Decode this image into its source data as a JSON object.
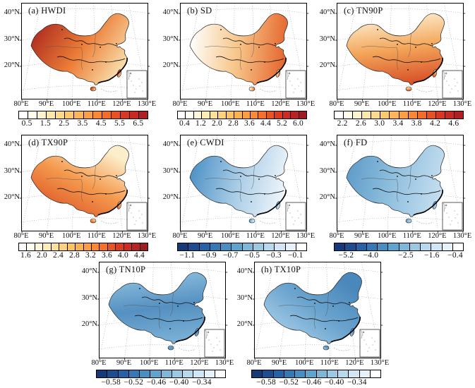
{
  "figure": {
    "background": "#ffffff",
    "frame_color": "#000000",
    "axis": {
      "lat_labels": [
        "40°N",
        "30°N",
        "20°N"
      ],
      "lon_labels": [
        "80°E",
        "90°E",
        "100°E",
        "110°E",
        "120°E",
        "130°E"
      ]
    },
    "panels": [
      {
        "id": "a",
        "title": "(a) HWDI",
        "map_gradient": {
          "angle": 115,
          "stops": [
            "#b23122",
            "#ec7c36",
            "#f8dca8"
          ]
        },
        "colorbar": {
          "ticks": [
            "0.5",
            "1.5",
            "2.5",
            "3.5",
            "4.5",
            "5.5",
            "6.5"
          ],
          "colors": [
            "#ffffff",
            "#fffce9",
            "#fdf3cf",
            "#fbe8ad",
            "#fcda8d",
            "#fcc96f",
            "#fcb559",
            "#fb9f45",
            "#f98735",
            "#f56c2a",
            "#e95023",
            "#da3722",
            "#c92823",
            "#b01f22"
          ]
        }
      },
      {
        "id": "b",
        "title": "(b) SD",
        "map_gradient": {
          "angle": 95,
          "stops": [
            "#fefefb",
            "#f7c487",
            "#e4632c"
          ]
        },
        "colorbar": {
          "ticks": [
            "0.4",
            "1.2",
            "2.0",
            "2.8",
            "3.6",
            "4.4",
            "5.2",
            "6.0"
          ],
          "colors": [
            "#ffffff",
            "#fffdf1",
            "#fdf6d8",
            "#fcecb6",
            "#fbe098",
            "#fcd27d",
            "#fcc365",
            "#fcb150",
            "#fb9d42",
            "#f98935",
            "#f6702b",
            "#ea5423",
            "#dc3b22",
            "#cc2c23",
            "#b92124",
            "#a01b1f"
          ]
        }
      },
      {
        "id": "c",
        "title": "(c) TN90P",
        "map_gradient": {
          "angle": 170,
          "stops": [
            "#fdf0d3",
            "#f3a659",
            "#d85129"
          ]
        },
        "colorbar": {
          "ticks": [
            "2.2",
            "2.6",
            "3.0",
            "3.4",
            "3.8",
            "4.2",
            "4.6"
          ],
          "colors": [
            "#ffffff",
            "#fffce9",
            "#fdf3cf",
            "#fbe8ad",
            "#fcda8d",
            "#fcc96f",
            "#fcb559",
            "#fb9f45",
            "#f98735",
            "#f56c2a",
            "#e95023",
            "#da3722",
            "#c92823",
            "#b01f22"
          ]
        }
      },
      {
        "id": "d",
        "title": "(d) TX90P",
        "map_gradient": {
          "angle": 215,
          "stops": [
            "#fdeecb",
            "#f49a4e",
            "#df5a28"
          ]
        },
        "colorbar": {
          "ticks": [
            "1.6",
            "2.0",
            "2.4",
            "2.8",
            "3.2",
            "3.6",
            "4.0",
            "4.4"
          ],
          "colors": [
            "#ffffff",
            "#fffdf1",
            "#fdf6d8",
            "#fcecb6",
            "#fbe098",
            "#fcd27d",
            "#fcc365",
            "#fcb150",
            "#fb9d42",
            "#f98935",
            "#f6702b",
            "#ea5423",
            "#dc3b22",
            "#cc2c23",
            "#b92124",
            "#a01b1f"
          ]
        }
      },
      {
        "id": "e",
        "title": "(e) CWDI",
        "map_gradient": {
          "angle": 100,
          "stops": [
            "#4f93c6",
            "#aacde7",
            "#f0f6fb"
          ]
        },
        "colorbar": {
          "ticks": [
            "−1.1",
            "−0.9",
            "−0.7",
            "−0.5",
            "−0.3",
            "−0.1"
          ],
          "colors": [
            "#16397a",
            "#1d4d90",
            "#2662a7",
            "#3478b5",
            "#478fc2",
            "#5fa4ce",
            "#7eb7d9",
            "#9bc9e2",
            "#b8d9ec",
            "#d1e5f4",
            "#e7f1f9",
            "#ffffff"
          ]
        }
      },
      {
        "id": "f",
        "title": "(f) FD",
        "map_gradient": {
          "angle": 100,
          "stops": [
            "#609dca",
            "#92c1df",
            "#c6dff0"
          ]
        },
        "colorbar": {
          "ticks": [
            "−5.2",
            "−4.0",
            "−2.5",
            "−1.6",
            "−0.4"
          ],
          "tick_positions": [
            0.1,
            0.29,
            0.56,
            0.76,
            0.94
          ],
          "colors": [
            "#16397a",
            "#1d4d90",
            "#2662a7",
            "#3478b5",
            "#478fc2",
            "#5fa4ce",
            "#7eb7d9",
            "#9bc9e2",
            "#b8d9ec",
            "#d1e5f4",
            "#e7f1f9",
            "#ffffff"
          ]
        }
      },
      {
        "id": "g",
        "title": "(g) TN10P",
        "map_gradient": {
          "angle": 170,
          "stops": [
            "#8cbfdf",
            "#5590c1",
            "#7ab1d6"
          ]
        },
        "colorbar": {
          "ticks": [
            "−0.58",
            "−0.52",
            "−0.46",
            "−0.40",
            "−0.34"
          ],
          "tick_positions": [
            0.12,
            0.295,
            0.47,
            0.645,
            0.82
          ],
          "colors": [
            "#16397a",
            "#1d4d90",
            "#2662a7",
            "#3478b5",
            "#478fc2",
            "#5fa4ce",
            "#7eb7d9",
            "#9bc9e2",
            "#b8d9ec",
            "#d1e5f4",
            "#e7f1f9",
            "#ffffff"
          ]
        }
      },
      {
        "id": "h",
        "title": "(h) TX10P",
        "map_gradient": {
          "angle": 45,
          "stops": [
            "#a5cce7",
            "#6ba4ce",
            "#4a87ba"
          ]
        },
        "colorbar": {
          "ticks": [
            "−0.58",
            "−0.52",
            "−0.46",
            "−0.40",
            "−0.34"
          ],
          "tick_positions": [
            0.12,
            0.295,
            0.47,
            0.645,
            0.82
          ],
          "colors": [
            "#16397a",
            "#1d4d90",
            "#2662a7",
            "#3478b5",
            "#478fc2",
            "#5fa4ce",
            "#7eb7d9",
            "#9bc9e2",
            "#b8d9ec",
            "#d1e5f4",
            "#e7f1f9",
            "#ffffff"
          ]
        }
      }
    ]
  },
  "chart_data": [
    {
      "type": "heatmap",
      "subtype": "choropleth-map",
      "panel": "a",
      "title": "(a) HWDI",
      "region": "China",
      "x_ticks": [
        "80°E",
        "90°E",
        "100°E",
        "110°E",
        "120°E",
        "130°E"
      ],
      "y_ticks": [
        "40°N",
        "30°N",
        "20°N"
      ],
      "colorbar_ticks": [
        0.5,
        1.5,
        2.5,
        3.5,
        4.5,
        5.5,
        6.5
      ],
      "palette": "white-yellow-orange-darkred",
      "spatial_pattern": "high values (dark red) in northwest/Tibet edge, moderate orange over most of China, lightest in southeast coast"
    },
    {
      "type": "heatmap",
      "subtype": "choropleth-map",
      "panel": "b",
      "title": "(b) SD",
      "region": "China",
      "x_ticks": [
        "80°E",
        "90°E",
        "100°E",
        "110°E",
        "120°E",
        "130°E"
      ],
      "y_ticks": [
        "40°N",
        "30°N",
        "20°N"
      ],
      "colorbar_ticks": [
        0.4,
        1.2,
        2.0,
        2.8,
        3.6,
        4.4,
        5.2,
        6.0
      ],
      "palette": "white-yellow-orange-darkred",
      "spatial_pattern": "near-zero (white) over western Tibet, orange in east, darkest red in southwest (Yunnan)"
    },
    {
      "type": "heatmap",
      "subtype": "choropleth-map",
      "panel": "c",
      "title": "(c) TN90P",
      "region": "China",
      "x_ticks": [
        "80°E",
        "90°E",
        "100°E",
        "110°E",
        "120°E",
        "130°E"
      ],
      "y_ticks": [
        "40°N",
        "30°N",
        "20°N"
      ],
      "colorbar_ticks": [
        2.2,
        2.6,
        3.0,
        3.4,
        3.8,
        4.2,
        4.6
      ],
      "palette": "white-yellow-orange-darkred",
      "spatial_pattern": "light cream in north/northeast, orange in central-west, dark red along south coast"
    },
    {
      "type": "heatmap",
      "subtype": "choropleth-map",
      "panel": "d",
      "title": "(d) TX90P",
      "region": "China",
      "x_ticks": [
        "80°E",
        "90°E",
        "100°E",
        "110°E",
        "120°E",
        "130°E"
      ],
      "y_ticks": [
        "40°N",
        "30°N",
        "20°N"
      ],
      "colorbar_ticks": [
        1.6,
        2.0,
        2.4,
        2.8,
        3.2,
        3.6,
        4.0,
        4.4
      ],
      "palette": "white-yellow-orange-darkred",
      "spatial_pattern": "light in northeast, orange in west and south, dark red on southeast coast"
    },
    {
      "type": "heatmap",
      "subtype": "choropleth-map",
      "panel": "e",
      "title": "(e) CWDI",
      "region": "China",
      "x_ticks": [
        "80°E",
        "90°E",
        "100°E",
        "110°E",
        "120°E",
        "130°E"
      ],
      "y_ticks": [
        "40°N",
        "30°N",
        "20°N"
      ],
      "colorbar_ticks": [
        -1.1,
        -0.9,
        -0.7,
        -0.5,
        -0.3,
        -0.1
      ],
      "palette": "darkblue-to-white",
      "spatial_pattern": "pale blue overall, darkest blue along southwest Tibet edge, near-white in central-south"
    },
    {
      "type": "heatmap",
      "subtype": "choropleth-map",
      "panel": "f",
      "title": "(f) FD",
      "region": "China",
      "x_ticks": [
        "80°E",
        "90°E",
        "100°E",
        "110°E",
        "120°E",
        "130°E"
      ],
      "y_ticks": [
        "40°N",
        "30°N",
        "20°N"
      ],
      "colorbar_ticks": [
        -5.2,
        -4.0,
        -2.5,
        -1.6,
        -0.4
      ],
      "palette": "darkblue-to-white",
      "spatial_pattern": "medium blue nationwide with near-white patch over Tibetan Plateau, darker in northwest"
    },
    {
      "type": "heatmap",
      "subtype": "choropleth-map",
      "panel": "g",
      "title": "(g) TN10P",
      "region": "China",
      "x_ticks": [
        "80°E",
        "90°E",
        "100°E",
        "110°E",
        "120°E",
        "130°E"
      ],
      "y_ticks": [
        "40°N",
        "30°N",
        "20°N"
      ],
      "colorbar_ticks": [
        -0.58,
        -0.52,
        -0.46,
        -0.4,
        -0.34
      ],
      "palette": "darkblue-to-white",
      "spatial_pattern": "medium blue with darker blue band across central China"
    },
    {
      "type": "heatmap",
      "subtype": "choropleth-map",
      "panel": "h",
      "title": "(h) TX10P",
      "region": "China",
      "x_ticks": [
        "80°E",
        "90°E",
        "100°E",
        "110°E",
        "120°E",
        "130°E"
      ],
      "y_ticks": [
        "40°N",
        "30°N",
        "20°N"
      ],
      "colorbar_ticks": [
        -0.58,
        -0.52,
        -0.46,
        -0.4,
        -0.34
      ],
      "palette": "darkblue-to-white",
      "spatial_pattern": "medium blue, darker toward the northeast"
    }
  ]
}
